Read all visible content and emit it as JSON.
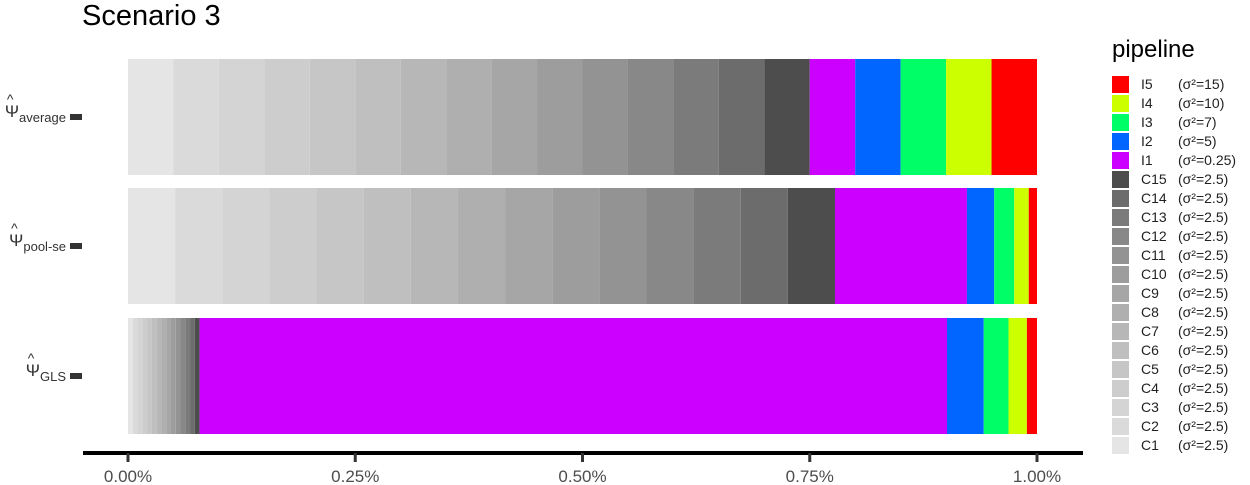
{
  "chart_data": {
    "type": "bar",
    "orientation": "horizontal",
    "stacked": true,
    "title": "Scenario 3",
    "legend_title": "pipeline",
    "legend_position": "right",
    "xlim": [
      0,
      1
    ],
    "x_ticks": [
      0,
      0.25,
      0.5,
      0.75,
      1
    ],
    "x_tick_labels": [
      "0.00%",
      "0.25%",
      "0.50%",
      "0.75%",
      "1.00%"
    ],
    "grid": false,
    "categories": [
      {
        "symbol": "Ψ",
        "sub": "average"
      },
      {
        "symbol": "Ψ",
        "sub": "pool-se"
      },
      {
        "symbol": "Ψ",
        "sub": "GLS"
      }
    ],
    "series": [
      {
        "name": "C1",
        "sigma": "(σ²=2.5)",
        "color": "#e5e5e5",
        "values": [
          0.05,
          0.0518,
          0.0052
        ]
      },
      {
        "name": "C2",
        "sigma": "(σ²=2.5)",
        "color": "#dadada",
        "values": [
          0.05,
          0.0518,
          0.0052
        ]
      },
      {
        "name": "C3",
        "sigma": "(σ²=2.5)",
        "color": "#d4d4d4",
        "values": [
          0.05,
          0.0518,
          0.0052
        ]
      },
      {
        "name": "C4",
        "sigma": "(σ²=2.5)",
        "color": "#cdcdcd",
        "values": [
          0.05,
          0.0518,
          0.0052
        ]
      },
      {
        "name": "C5",
        "sigma": "(σ²=2.5)",
        "color": "#c6c6c6",
        "values": [
          0.05,
          0.0518,
          0.0052
        ]
      },
      {
        "name": "C6",
        "sigma": "(σ²=2.5)",
        "color": "#bfbfbf",
        "values": [
          0.05,
          0.0518,
          0.0052
        ]
      },
      {
        "name": "C7",
        "sigma": "(σ²=2.5)",
        "color": "#b7b7b7",
        "values": [
          0.05,
          0.0518,
          0.0052
        ]
      },
      {
        "name": "C8",
        "sigma": "(σ²=2.5)",
        "color": "#afafaf",
        "values": [
          0.05,
          0.0518,
          0.0052
        ]
      },
      {
        "name": "C9",
        "sigma": "(σ²=2.5)",
        "color": "#a6a6a6",
        "values": [
          0.05,
          0.0518,
          0.0052
        ]
      },
      {
        "name": "C10",
        "sigma": "(σ²=2.5)",
        "color": "#9d9d9d",
        "values": [
          0.05,
          0.0518,
          0.0052
        ]
      },
      {
        "name": "C11",
        "sigma": "(σ²=2.5)",
        "color": "#939393",
        "values": [
          0.05,
          0.0518,
          0.0052
        ]
      },
      {
        "name": "C12",
        "sigma": "(σ²=2.5)",
        "color": "#888888",
        "values": [
          0.05,
          0.0518,
          0.0052
        ]
      },
      {
        "name": "C13",
        "sigma": "(σ²=2.5)",
        "color": "#7b7b7b",
        "values": [
          0.05,
          0.0518,
          0.0052
        ]
      },
      {
        "name": "C14",
        "sigma": "(σ²=2.5)",
        "color": "#6c6c6c",
        "values": [
          0.05,
          0.0518,
          0.0052
        ]
      },
      {
        "name": "C15",
        "sigma": "(σ²=2.5)",
        "color": "#4d4d4d",
        "values": [
          0.05,
          0.0518,
          0.0052
        ]
      },
      {
        "name": "I1",
        "sigma": "(σ²=0.25)",
        "color": "#cc00ff",
        "values": [
          0.05,
          0.145,
          0.814
        ]
      },
      {
        "name": "I2",
        "sigma": "(σ²=5)",
        "color": "#0066ff",
        "values": [
          0.05,
          0.03,
          0.04
        ]
      },
      {
        "name": "I3",
        "sigma": "(σ²=7)",
        "color": "#00ff66",
        "values": [
          0.05,
          0.022,
          0.027
        ]
      },
      {
        "name": "I4",
        "sigma": "(σ²=10)",
        "color": "#ccff00",
        "values": [
          0.05,
          0.016,
          0.02
        ]
      },
      {
        "name": "I5",
        "sigma": "(σ²=15)",
        "color": "#ff0000",
        "values": [
          0.05,
          0.009,
          0.011
        ]
      }
    ]
  }
}
